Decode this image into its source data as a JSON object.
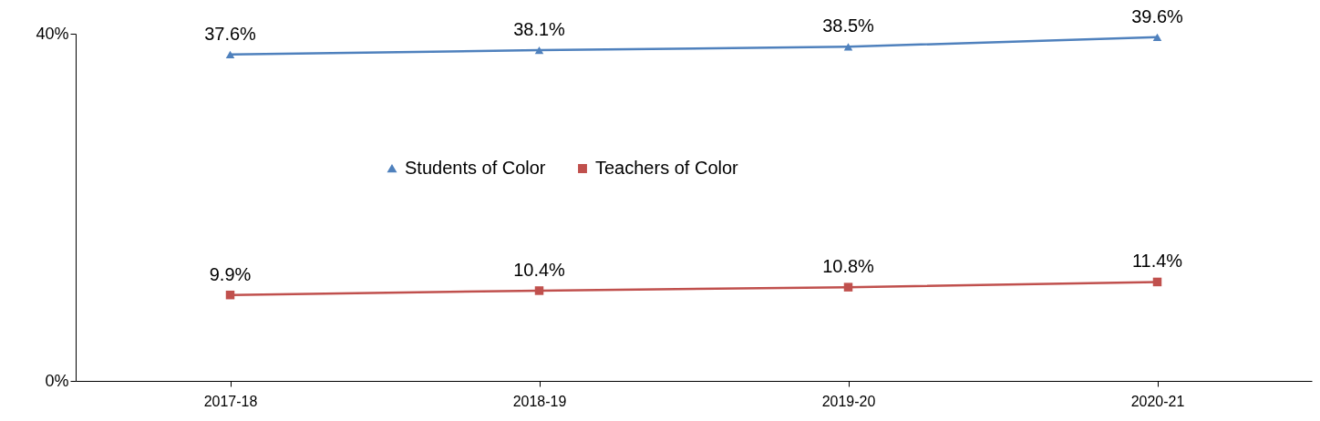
{
  "chart_data": {
    "type": "line",
    "categories": [
      "2017-18",
      "2018-19",
      "2019-20",
      "2020-21"
    ],
    "series": [
      {
        "name": "Students of Color",
        "color": "#4f81bd",
        "marker": "triangle",
        "values": [
          37.6,
          38.1,
          38.5,
          39.6
        ],
        "value_labels": [
          "37.6%",
          "38.1%",
          "38.5%",
          "39.6%"
        ]
      },
      {
        "name": "Teachers of Color",
        "color": "#c0504d",
        "marker": "square",
        "values": [
          9.9,
          10.4,
          10.8,
          11.4
        ],
        "value_labels": [
          "9.9%",
          "10.4%",
          "10.8%",
          "11.4%"
        ]
      }
    ],
    "ylim": [
      0,
      40
    ],
    "yticks": [
      {
        "value": 0,
        "label": "0%"
      },
      {
        "value": 40,
        "label": "40%"
      }
    ],
    "grid": false,
    "legend": "center"
  }
}
